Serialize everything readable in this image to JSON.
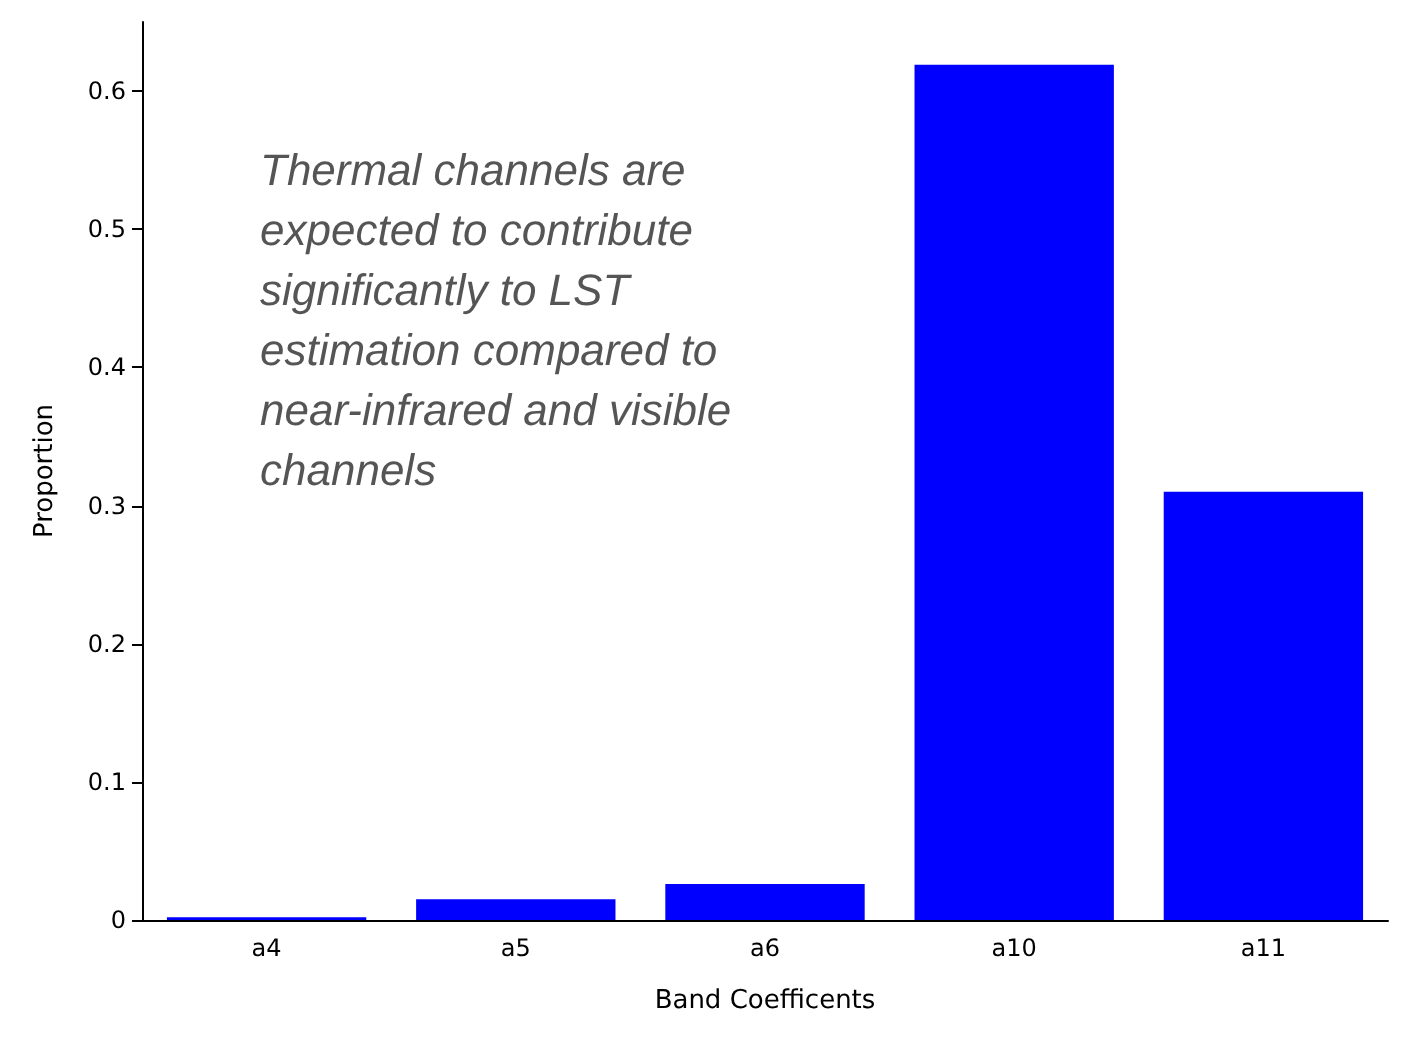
{
  "chart_data": {
    "type": "bar",
    "xlabel": "Band Coefficents",
    "ylabel": "Proportion",
    "categories": [
      "a4",
      "a5",
      "a6",
      "a10",
      "a11"
    ],
    "values": [
      0.002,
      0.015,
      0.026,
      0.619,
      0.31
    ],
    "color": "#0000ff",
    "ylim": [
      0,
      0.65
    ],
    "yticks": [
      0,
      0.1,
      0.2,
      0.3,
      0.4,
      0.5,
      0.6
    ],
    "grid": false,
    "annotations": [
      "Thermal channels are expected to contribute significantly to LST estimation compared to near-infrared and visible channels"
    ]
  }
}
